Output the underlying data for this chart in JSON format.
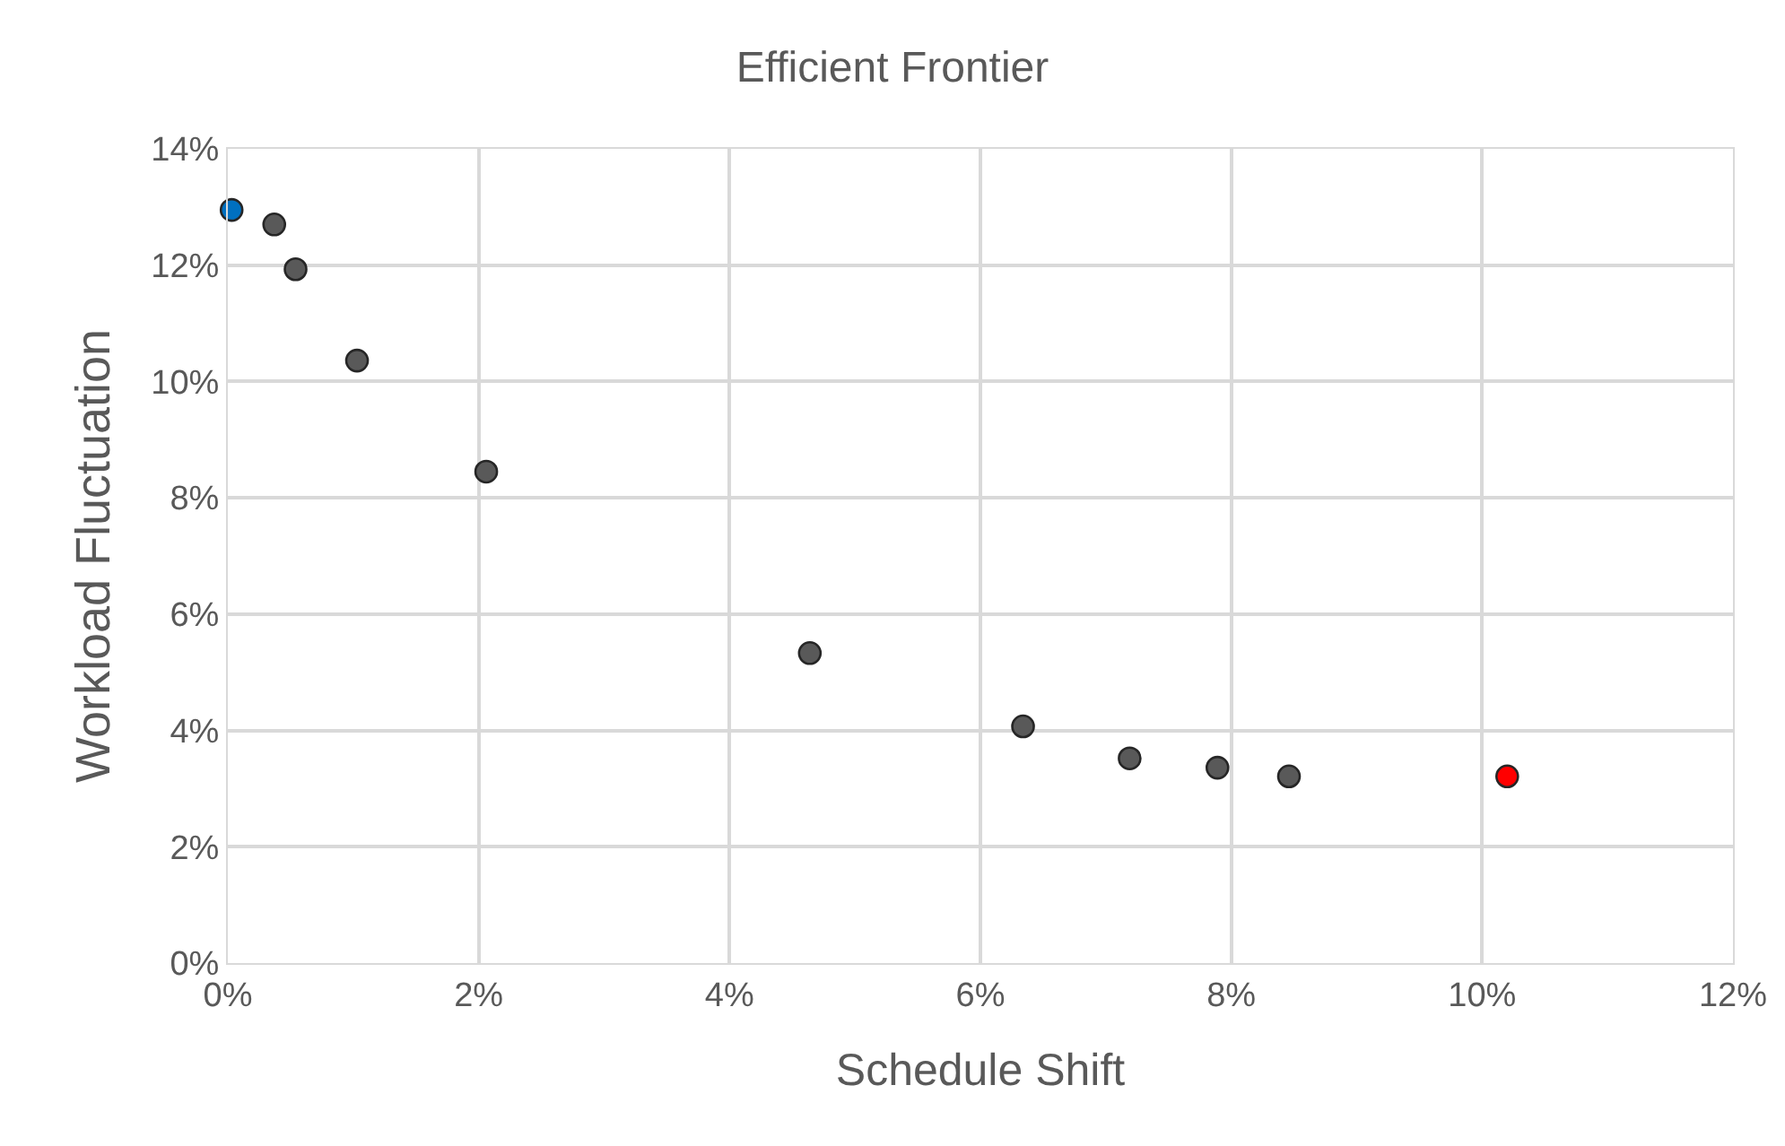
{
  "chart_data": {
    "type": "scatter",
    "title": "Efficient Frontier",
    "xlabel": "Schedule Shift",
    "ylabel": "Workload Fluctuation",
    "x": [
      0.03,
      0.37,
      0.54,
      1.03,
      2.06,
      4.64,
      6.34,
      7.19,
      7.89,
      8.46,
      10.2
    ],
    "values": [
      12.95,
      12.7,
      11.93,
      10.36,
      8.45,
      5.33,
      4.07,
      3.52,
      3.36,
      3.21,
      3.21
    ],
    "colors": [
      "#0070c0",
      "#595959",
      "#595959",
      "#595959",
      "#595959",
      "#595959",
      "#595959",
      "#595959",
      "#595959",
      "#595959",
      "#ff0000"
    ],
    "xlim": [
      0,
      12
    ],
    "ylim": [
      0,
      14
    ],
    "xticks": [
      {
        "value": 0,
        "label": "0%"
      },
      {
        "value": 2,
        "label": "2%"
      },
      {
        "value": 4,
        "label": "4%"
      },
      {
        "value": 6,
        "label": "6%"
      },
      {
        "value": 8,
        "label": "8%"
      },
      {
        "value": 10,
        "label": "10%"
      },
      {
        "value": 12,
        "label": "12%"
      }
    ],
    "yticks": [
      {
        "value": 0,
        "label": "0%"
      },
      {
        "value": 2,
        "label": "2%"
      },
      {
        "value": 4,
        "label": "4%"
      },
      {
        "value": 6,
        "label": "6%"
      },
      {
        "value": 8,
        "label": "8%"
      },
      {
        "value": 10,
        "label": "10%"
      },
      {
        "value": 12,
        "label": "12%"
      },
      {
        "value": 14,
        "label": "14%"
      }
    ],
    "grid": true,
    "marker": "circle"
  }
}
